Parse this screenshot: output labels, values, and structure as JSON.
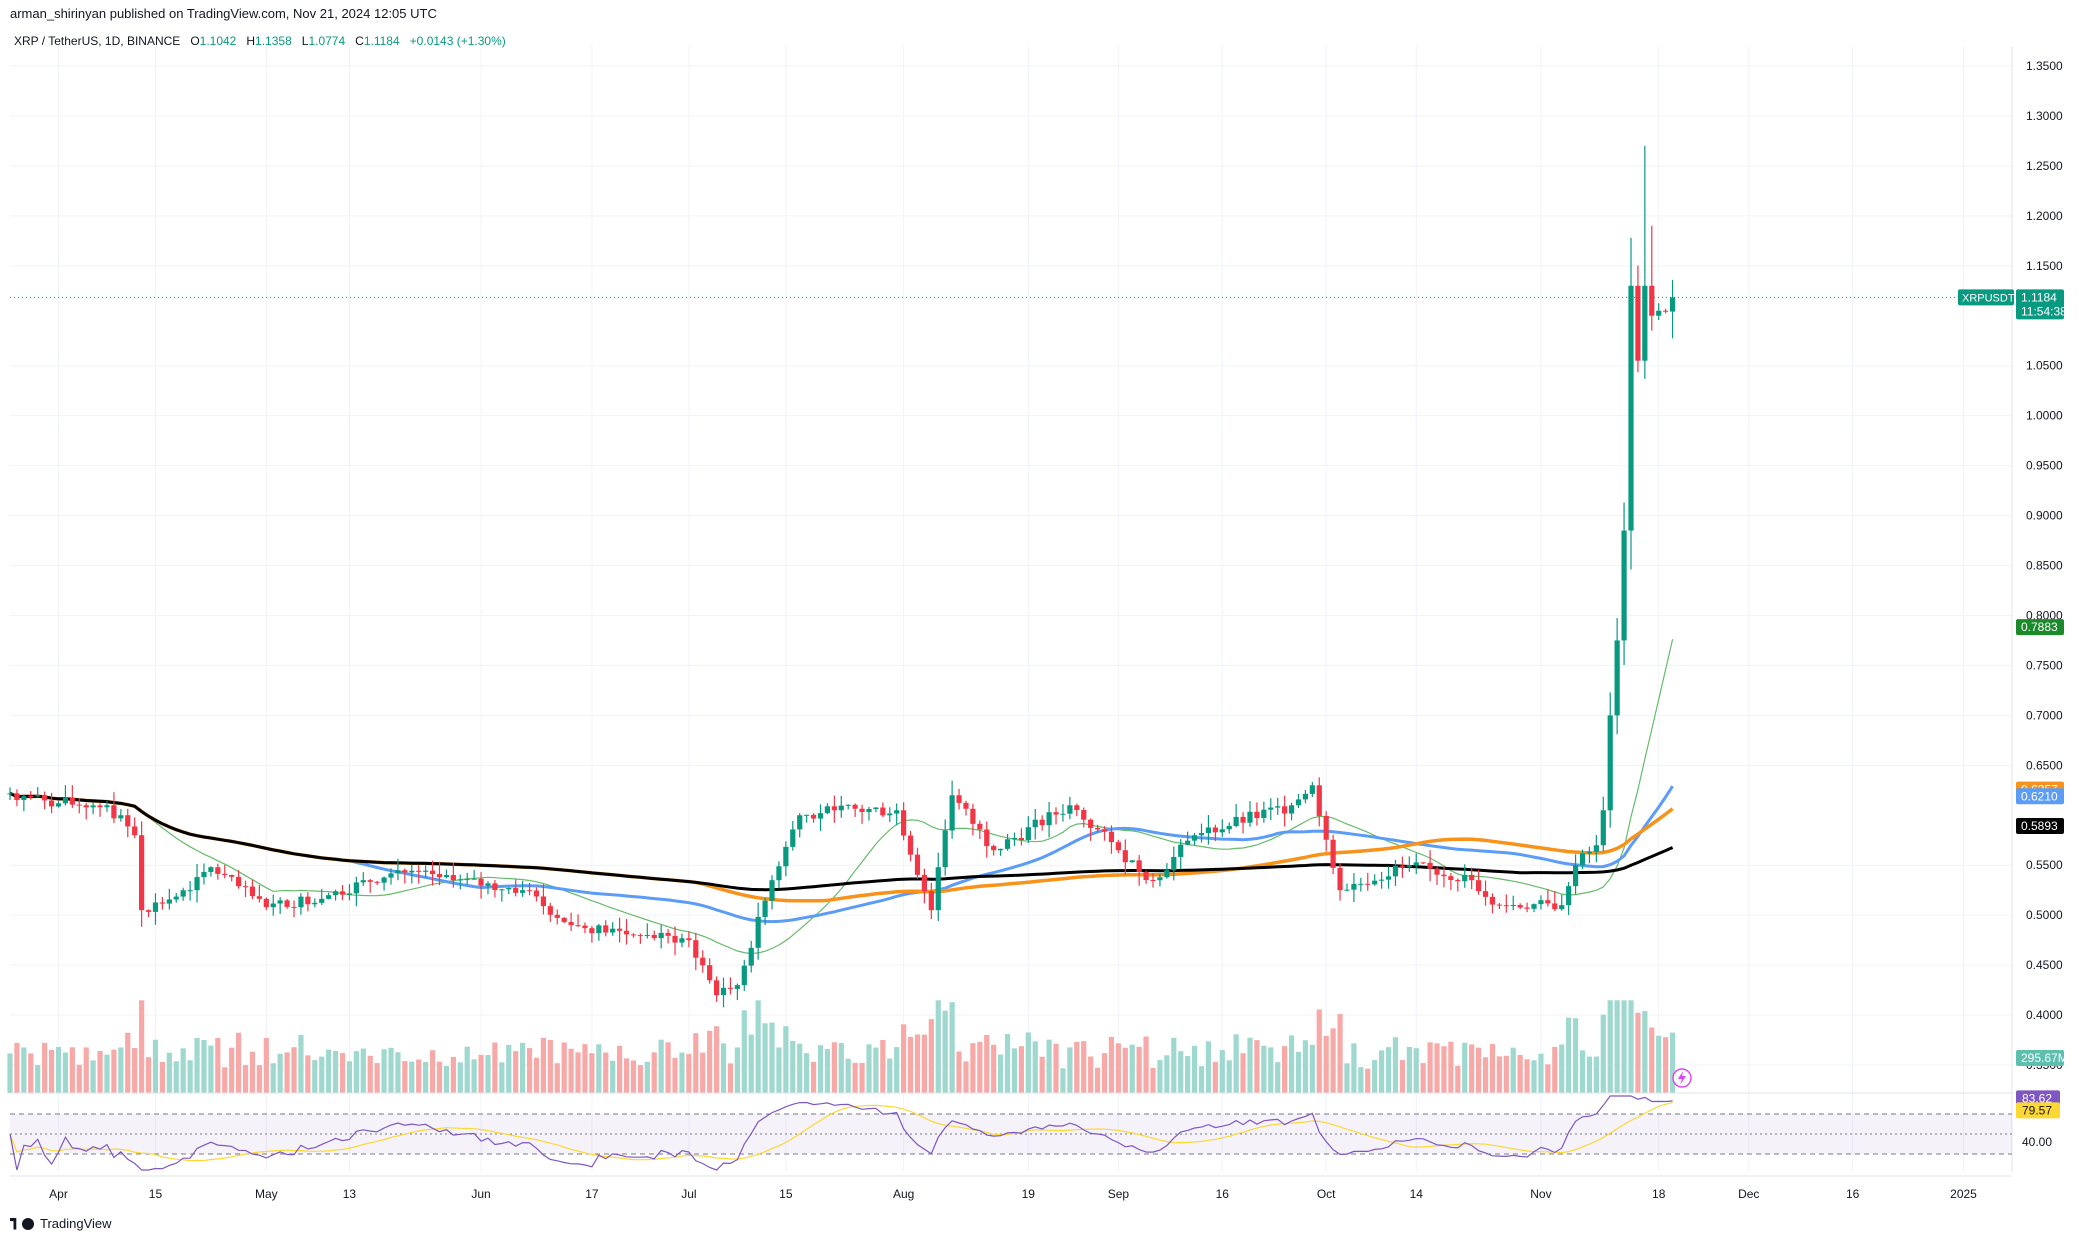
{
  "header": {
    "publisher_line": "arman_shirinyan published on TradingView.com, Nov 21, 2024 12:05 UTC"
  },
  "symbol_bar": {
    "symbol": "XRP / TetherUS, 1D, BINANCE",
    "open_label": "O",
    "open": "1.1042",
    "high_label": "H",
    "high": "1.1358",
    "low_label": "L",
    "low": "1.0774",
    "close_label": "C",
    "close": "1.1184",
    "change": "+0.0143 (+1.30%)"
  },
  "footer": {
    "brand": "TradingView"
  },
  "colors": {
    "up": "#089981",
    "down": "#f23645",
    "ma_black": "#000000",
    "ma_orange": "#f7931a",
    "ma_blue": "#5b9cf6",
    "ma_green": "#66bb6a",
    "rsi_line": "#7e57c2",
    "rsi_ma": "#fdd835",
    "grid": "#f0f3fa",
    "axis_text": "#131722"
  },
  "chart_data": {
    "type": "candlestick",
    "symbol": "XRPUSDT",
    "timeframe": "1D",
    "x_range": [
      "2024-03-25",
      "2025-01-08"
    ],
    "x_ticks": [
      "Apr",
      "15",
      "May",
      "13",
      "Jun",
      "17",
      "Jul",
      "15",
      "Aug",
      "19",
      "Sep",
      "16",
      "Oct",
      "14",
      "Nov",
      "18",
      "Dec",
      "16",
      "2025"
    ],
    "y_range": [
      0.32,
      1.37
    ],
    "y_ticks": [
      "1.3500",
      "1.3000",
      "1.2500",
      "1.2000",
      "1.1500",
      "1.0500",
      "1.0000",
      "0.9500",
      "0.9000",
      "0.8500",
      "0.8000",
      "0.7500",
      "0.7000",
      "0.6500",
      "0.5500",
      "0.5000",
      "0.4500",
      "0.4000",
      "0.3500"
    ],
    "price_labels": [
      {
        "name": "XRPUSDT",
        "value": "1.1184",
        "sub": "11:54:38",
        "color": "#089981"
      },
      {
        "value": "0.7883",
        "color": "#1b8a2b"
      },
      {
        "value": "0.6257",
        "color": "#f7931a"
      },
      {
        "value": "0.6210",
        "color": "#5b9cf6"
      },
      {
        "value": "0.5893",
        "color": "#000000"
      },
      {
        "value": "295.67M",
        "color": "#5dbfae"
      }
    ],
    "rsi": {
      "upper": 70,
      "lower": 30,
      "mid": 50,
      "labels": [
        {
          "value": "83.62",
          "color": "#7e57c2"
        },
        {
          "value": "79.57",
          "color": "#fdd835"
        },
        {
          "value": "40.00",
          "color": "#ffffff"
        }
      ]
    },
    "keypoints": [
      {
        "d": "2024-03-25",
        "c": 0.622
      },
      {
        "d": "2024-04-01",
        "c": 0.612
      },
      {
        "d": "2024-04-08",
        "c": 0.61
      },
      {
        "d": "2024-04-12",
        "c": 0.58
      },
      {
        "d": "2024-04-13",
        "c": 0.505
      },
      {
        "d": "2024-04-20",
        "c": 0.525
      },
      {
        "d": "2024-04-23",
        "c": 0.548
      },
      {
        "d": "2024-05-01",
        "c": 0.508
      },
      {
        "d": "2024-05-10",
        "c": 0.52
      },
      {
        "d": "2024-05-20",
        "c": 0.545
      },
      {
        "d": "2024-05-28",
        "c": 0.535
      },
      {
        "d": "2024-06-07",
        "c": 0.525
      },
      {
        "d": "2024-06-14",
        "c": 0.49
      },
      {
        "d": "2024-06-24",
        "c": 0.48
      },
      {
        "d": "2024-07-01",
        "c": 0.475
      },
      {
        "d": "2024-07-05",
        "c": 0.42
      },
      {
        "d": "2024-07-08",
        "c": 0.43
      },
      {
        "d": "2024-07-13",
        "c": 0.535
      },
      {
        "d": "2024-07-17",
        "c": 0.6
      },
      {
        "d": "2024-07-22",
        "c": 0.605
      },
      {
        "d": "2024-07-31",
        "c": 0.605
      },
      {
        "d": "2024-08-05",
        "c": 0.505
      },
      {
        "d": "2024-08-08",
        "c": 0.62
      },
      {
        "d": "2024-08-14",
        "c": 0.565
      },
      {
        "d": "2024-08-25",
        "c": 0.61
      },
      {
        "d": "2024-09-01",
        "c": 0.565
      },
      {
        "d": "2024-09-06",
        "c": 0.535
      },
      {
        "d": "2024-09-12",
        "c": 0.58
      },
      {
        "d": "2024-09-26",
        "c": 0.61
      },
      {
        "d": "2024-09-29",
        "c": 0.63
      },
      {
        "d": "2024-10-03",
        "c": 0.525
      },
      {
        "d": "2024-10-13",
        "c": 0.55
      },
      {
        "d": "2024-10-22",
        "c": 0.535
      },
      {
        "d": "2024-10-26",
        "c": 0.51
      },
      {
        "d": "2024-11-04",
        "c": 0.51
      },
      {
        "d": "2024-11-06",
        "c": 0.55
      },
      {
        "d": "2024-11-09",
        "c": 0.57
      },
      {
        "d": "2024-11-10",
        "c": 0.605
      },
      {
        "d": "2024-11-11",
        "c": 0.7
      },
      {
        "d": "2024-11-12",
        "c": 0.775
      },
      {
        "d": "2024-11-13",
        "c": 0.885
      },
      {
        "d": "2024-11-14",
        "c": 1.13
      },
      {
        "d": "2024-11-15",
        "c": 1.055
      },
      {
        "d": "2024-11-16",
        "c": 1.13
      },
      {
        "d": "2024-11-17",
        "c": 1.1
      },
      {
        "d": "2024-11-18",
        "c": 1.105
      },
      {
        "d": "2024-11-19",
        "c": 1.1042
      },
      {
        "d": "2024-11-20",
        "c": 1.1184
      }
    ],
    "last_candle": {
      "o": 1.1042,
      "h": 1.1358,
      "l": 1.0774,
      "c": 1.1184
    },
    "spike_highs": [
      {
        "d": "2024-11-16",
        "h": 1.27
      },
      {
        "d": "2024-11-17",
        "h": 1.19
      }
    ]
  }
}
